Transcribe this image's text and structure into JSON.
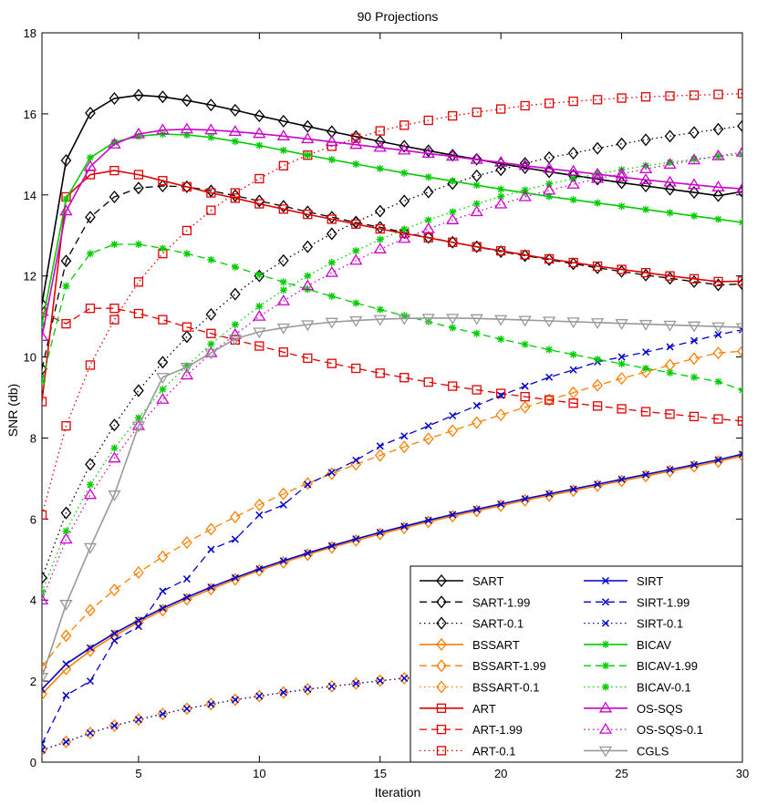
{
  "chart_data": {
    "type": "line",
    "title": "90 Projections",
    "xlabel": "Iteration",
    "ylabel": "SNR (db)",
    "xlim": [
      1,
      30
    ],
    "ylim": [
      0,
      18
    ],
    "xticks": [
      5,
      10,
      15,
      20,
      25,
      30
    ],
    "yticks": [
      0,
      2,
      4,
      6,
      8,
      10,
      12,
      14,
      16,
      18
    ],
    "x": [
      1,
      2,
      3,
      4,
      5,
      6,
      7,
      8,
      9,
      10,
      11,
      12,
      13,
      14,
      15,
      16,
      17,
      18,
      19,
      20,
      21,
      22,
      23,
      24,
      25,
      26,
      27,
      28,
      29,
      30
    ],
    "legend_position": "bottom-right",
    "series": [
      {
        "name": "SART",
        "color": "#000000",
        "dash": "solid",
        "marker": "diamond",
        "values": [
          11.3,
          14.85,
          16.02,
          16.38,
          16.46,
          16.42,
          16.33,
          16.22,
          16.09,
          15.95,
          15.82,
          15.69,
          15.56,
          15.44,
          15.32,
          15.2,
          15.09,
          14.98,
          14.88,
          14.77,
          14.67,
          14.57,
          14.48,
          14.39,
          14.3,
          14.22,
          14.14,
          14.06,
          13.98,
          14.08
        ]
      },
      {
        "name": "SART-1.99",
        "color": "#000000",
        "dash": "dashed",
        "marker": "diamond",
        "values": [
          9.7,
          12.37,
          13.45,
          13.95,
          14.17,
          14.22,
          14.2,
          14.1,
          13.98,
          13.85,
          13.72,
          13.58,
          13.45,
          13.32,
          13.2,
          13.07,
          12.95,
          12.83,
          12.72,
          12.6,
          12.5,
          12.4,
          12.3,
          12.2,
          12.11,
          12.02,
          11.94,
          11.86,
          11.78,
          11.8
        ]
      },
      {
        "name": "SART-0.1",
        "color": "#000000",
        "dash": "dotted",
        "marker": "diamond",
        "values": [
          4.55,
          6.15,
          7.35,
          8.32,
          9.17,
          9.87,
          10.5,
          11.05,
          11.55,
          12.0,
          12.38,
          12.72,
          13.04,
          13.33,
          13.6,
          13.85,
          14.07,
          14.28,
          14.47,
          14.62,
          14.78,
          14.92,
          15.03,
          15.15,
          15.26,
          15.36,
          15.45,
          15.54,
          15.62,
          15.7
        ]
      },
      {
        "name": "BSSART",
        "color": "#ff8000",
        "dash": "solid",
        "marker": "diamond",
        "values": [
          1.68,
          2.3,
          2.75,
          3.12,
          3.45,
          3.75,
          4.02,
          4.27,
          4.51,
          4.73,
          4.93,
          5.12,
          5.3,
          5.47,
          5.63,
          5.78,
          5.93,
          6.07,
          6.2,
          6.33,
          6.46,
          6.58,
          6.7,
          6.82,
          6.94,
          7.06,
          7.18,
          7.3,
          7.42,
          7.56
        ]
      },
      {
        "name": "BSSART-1.99",
        "color": "#ff8000",
        "dash": "dashed",
        "marker": "diamond",
        "values": [
          2.35,
          3.12,
          3.75,
          4.25,
          4.68,
          5.07,
          5.42,
          5.75,
          6.05,
          6.35,
          6.62,
          6.88,
          7.12,
          7.35,
          7.57,
          7.78,
          7.98,
          8.18,
          8.38,
          8.57,
          8.76,
          8.94,
          9.12,
          9.3,
          9.47,
          9.63,
          9.8,
          9.96,
          10.1,
          10.14
        ]
      },
      {
        "name": "BSSART-0.1",
        "color": "#ff8000",
        "dash": "dotted",
        "marker": "diamond",
        "values": [
          0.3,
          0.5,
          0.72,
          0.9,
          1.05,
          1.19,
          1.32,
          1.43,
          1.54,
          1.63,
          1.72,
          1.8,
          1.87,
          1.94,
          2.01,
          2.07,
          2.13,
          2.18,
          2.23,
          2.28,
          2.33,
          2.38,
          2.42,
          2.47,
          2.51,
          2.55,
          2.6,
          2.64,
          2.68,
          2.74
        ]
      },
      {
        "name": "ART",
        "color": "#e00000",
        "dash": "solid",
        "marker": "square",
        "values": [
          8.9,
          13.95,
          14.5,
          14.6,
          14.5,
          14.35,
          14.2,
          14.05,
          13.92,
          13.78,
          13.65,
          13.52,
          13.4,
          13.28,
          13.16,
          13.05,
          12.94,
          12.83,
          12.72,
          12.62,
          12.52,
          12.42,
          12.33,
          12.24,
          12.16,
          12.08,
          12.0,
          11.93,
          11.86,
          11.87
        ]
      },
      {
        "name": "ART-1.99",
        "color": "#e00000",
        "dash": "dashed",
        "marker": "square",
        "values": [
          11.1,
          10.82,
          11.2,
          11.2,
          11.07,
          10.92,
          10.74,
          10.58,
          10.42,
          10.27,
          10.12,
          9.97,
          9.84,
          9.72,
          9.6,
          9.49,
          9.38,
          9.28,
          9.19,
          9.1,
          9.02,
          8.94,
          8.86,
          8.79,
          8.72,
          8.65,
          8.59,
          8.53,
          8.47,
          8.42
        ]
      },
      {
        "name": "ART-0.1",
        "color": "#e00000",
        "dash": "dotted",
        "marker": "square",
        "values": [
          6.1,
          8.3,
          9.8,
          10.92,
          11.85,
          12.55,
          13.12,
          13.62,
          14.05,
          14.4,
          14.72,
          14.98,
          15.2,
          15.4,
          15.58,
          15.72,
          15.84,
          15.95,
          16.04,
          16.12,
          16.2,
          16.26,
          16.31,
          16.35,
          16.39,
          16.42,
          16.44,
          16.46,
          16.48,
          16.5
        ]
      },
      {
        "name": "SIRT",
        "color": "#0000cc",
        "dash": "solid",
        "marker": "x",
        "values": [
          1.8,
          2.42,
          2.82,
          3.18,
          3.5,
          3.8,
          4.07,
          4.32,
          4.55,
          4.77,
          4.97,
          5.16,
          5.34,
          5.51,
          5.67,
          5.82,
          5.97,
          6.11,
          6.24,
          6.37,
          6.5,
          6.62,
          6.74,
          6.86,
          6.98,
          7.1,
          7.22,
          7.34,
          7.46,
          7.6
        ]
      },
      {
        "name": "SIRT-1.99",
        "color": "#0000cc",
        "dash": "dashed",
        "marker": "x",
        "values": [
          0.45,
          1.65,
          2.0,
          3.0,
          3.35,
          4.22,
          4.52,
          5.25,
          5.5,
          6.1,
          6.35,
          6.85,
          7.15,
          7.45,
          7.8,
          8.05,
          8.3,
          8.55,
          8.8,
          9.05,
          9.28,
          9.5,
          9.68,
          9.88,
          10.0,
          10.12,
          10.25,
          10.4,
          10.55,
          10.67
        ]
      },
      {
        "name": "SIRT-0.1",
        "color": "#0000cc",
        "dash": "dotted",
        "marker": "x",
        "values": [
          0.3,
          0.5,
          0.72,
          0.9,
          1.05,
          1.19,
          1.32,
          1.43,
          1.54,
          1.63,
          1.72,
          1.8,
          1.87,
          1.94,
          2.01,
          2.07,
          2.13,
          2.18,
          2.23,
          2.28,
          2.33,
          2.38,
          2.42,
          2.47,
          2.51,
          2.55,
          2.6,
          2.64,
          2.68,
          2.74
        ]
      },
      {
        "name": "BICAV",
        "color": "#00cc00",
        "dash": "solid",
        "marker": "star",
        "values": [
          10.8,
          13.9,
          14.92,
          15.3,
          15.45,
          15.5,
          15.48,
          15.42,
          15.32,
          15.22,
          15.1,
          14.98,
          14.87,
          14.76,
          14.65,
          14.54,
          14.44,
          14.34,
          14.24,
          14.14,
          14.05,
          13.96,
          13.88,
          13.8,
          13.72,
          13.64,
          13.56,
          13.48,
          13.4,
          13.32
        ]
      },
      {
        "name": "BICAV-1.99",
        "color": "#00cc00",
        "dash": "dashed",
        "marker": "star",
        "values": [
          9.4,
          11.75,
          12.55,
          12.78,
          12.78,
          12.68,
          12.55,
          12.4,
          12.22,
          12.03,
          11.85,
          11.67,
          11.5,
          11.33,
          11.17,
          11.02,
          10.87,
          10.72,
          10.58,
          10.44,
          10.31,
          10.18,
          10.06,
          9.94,
          9.83,
          9.72,
          9.61,
          9.5,
          9.39,
          9.18
        ]
      },
      {
        "name": "BICAV-0.1",
        "color": "#00cc00",
        "dash": "dotted",
        "marker": "star",
        "values": [
          4.2,
          5.7,
          6.85,
          7.75,
          8.5,
          9.2,
          9.78,
          10.32,
          10.8,
          11.25,
          11.65,
          12.0,
          12.33,
          12.62,
          12.9,
          13.15,
          13.38,
          13.58,
          13.78,
          13.96,
          14.12,
          14.27,
          14.4,
          14.52,
          14.62,
          14.72,
          14.8,
          14.88,
          14.95,
          15.0
        ]
      },
      {
        "name": "OS-SQS",
        "color": "#cc00cc",
        "dash": "solid",
        "marker": "triangle",
        "values": [
          10.5,
          13.6,
          14.7,
          15.25,
          15.5,
          15.6,
          15.62,
          15.6,
          15.56,
          15.51,
          15.45,
          15.38,
          15.31,
          15.24,
          15.17,
          15.1,
          15.02,
          14.95,
          14.87,
          14.8,
          14.72,
          14.65,
          14.58,
          14.51,
          14.44,
          14.37,
          14.31,
          14.25,
          14.19,
          14.15
        ]
      },
      {
        "name": "OS-SQS-0.1",
        "color": "#cc00cc",
        "dash": "dotted",
        "marker": "triangle",
        "values": [
          4.0,
          5.5,
          6.6,
          7.5,
          8.3,
          8.95,
          9.55,
          10.1,
          10.55,
          11.0,
          11.38,
          11.75,
          12.08,
          12.38,
          12.66,
          12.92,
          13.16,
          13.38,
          13.58,
          13.77,
          13.95,
          14.11,
          14.26,
          14.4,
          14.52,
          14.64,
          14.75,
          14.86,
          14.96,
          15.05
        ]
      },
      {
        "name": "CGLS",
        "color": "#999999",
        "dash": "solid",
        "marker": "triangle-down",
        "values": [
          2.1,
          3.9,
          5.3,
          6.6,
          8.3,
          9.5,
          9.75,
          10.1,
          10.45,
          10.62,
          10.72,
          10.8,
          10.86,
          10.9,
          10.93,
          10.95,
          10.96,
          10.96,
          10.95,
          10.93,
          10.91,
          10.89,
          10.87,
          10.85,
          10.83,
          10.81,
          10.79,
          10.77,
          10.75,
          10.73
        ]
      }
    ]
  }
}
